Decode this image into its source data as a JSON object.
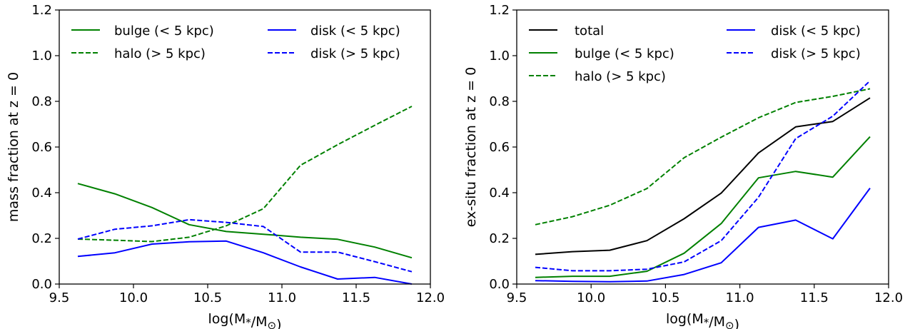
{
  "chart_data": [
    {
      "type": "line",
      "xlabel": "log(M*/M⊙)",
      "ylabel": "mass fraction at z = 0",
      "xlim": [
        9.5,
        12.0
      ],
      "ylim": [
        0.0,
        1.2
      ],
      "xticks": [
        "9.5",
        "10.0",
        "10.5",
        "11.0",
        "11.5",
        "12.0"
      ],
      "yticks": [
        "0.0",
        "0.2",
        "0.4",
        "0.6",
        "0.8",
        "1.0",
        "1.2"
      ],
      "legend_position": "top",
      "x": [
        9.625,
        9.875,
        10.125,
        10.375,
        10.625,
        10.875,
        11.125,
        11.375,
        11.625,
        11.875
      ],
      "series": [
        {
          "name": "bulge (< 5 kpc)",
          "color": "#008000",
          "style": "solid",
          "values": [
            0.44,
            0.395,
            0.335,
            0.26,
            0.23,
            0.218,
            0.205,
            0.196,
            0.162,
            0.115
          ]
        },
        {
          "name": "halo (> 5 kpc)",
          "color": "#008000",
          "style": "dashed",
          "values": [
            0.197,
            0.192,
            0.186,
            0.205,
            0.255,
            0.33,
            0.52,
            0.61,
            0.695,
            0.778
          ]
        },
        {
          "name": "disk (< 5 kpc)",
          "color": "#0000ff",
          "style": "solid",
          "values": [
            0.121,
            0.137,
            0.175,
            0.185,
            0.188,
            0.137,
            0.075,
            0.022,
            0.029,
            0.0
          ]
        },
        {
          "name": "disk (> 5 kpc)",
          "color": "#0000ff",
          "style": "dashed",
          "values": [
            0.197,
            0.24,
            0.255,
            0.282,
            0.27,
            0.252,
            0.14,
            0.14,
            0.098,
            0.054
          ]
        }
      ]
    },
    {
      "type": "line",
      "xlabel": "log(M*/M⊙)",
      "ylabel": "ex-situ fraction at z = 0",
      "xlim": [
        9.5,
        12.0
      ],
      "ylim": [
        0.0,
        1.2
      ],
      "xticks": [
        "9.5",
        "10.0",
        "10.5",
        "11.0",
        "11.5",
        "12.0"
      ],
      "yticks": [
        "0.0",
        "0.2",
        "0.4",
        "0.6",
        "0.8",
        "1.0",
        "1.2"
      ],
      "legend_position": "top",
      "x": [
        9.625,
        9.875,
        10.125,
        10.375,
        10.625,
        10.875,
        11.125,
        11.375,
        11.625,
        11.875
      ],
      "series": [
        {
          "name": "total",
          "color": "#000000",
          "style": "solid",
          "values": [
            0.13,
            0.142,
            0.148,
            0.19,
            0.286,
            0.398,
            0.574,
            0.688,
            0.712,
            0.815
          ]
        },
        {
          "name": "bulge (< 5 kpc)",
          "color": "#008000",
          "style": "solid",
          "values": [
            0.029,
            0.034,
            0.034,
            0.056,
            0.135,
            0.265,
            0.465,
            0.493,
            0.468,
            0.645
          ]
        },
        {
          "name": "halo (> 5 kpc)",
          "color": "#008000",
          "style": "dashed",
          "values": [
            0.26,
            0.295,
            0.345,
            0.418,
            0.553,
            0.643,
            0.728,
            0.795,
            0.822,
            0.855
          ]
        },
        {
          "name": "disk (< 5 kpc)",
          "color": "#0000ff",
          "style": "solid",
          "values": [
            0.015,
            0.012,
            0.01,
            0.013,
            0.042,
            0.093,
            0.248,
            0.28,
            0.198,
            0.42
          ]
        },
        {
          "name": "disk (> 5 kpc)",
          "color": "#0000ff",
          "style": "dashed",
          "values": [
            0.073,
            0.058,
            0.058,
            0.065,
            0.097,
            0.19,
            0.38,
            0.637,
            0.735,
            0.89
          ]
        }
      ]
    }
  ]
}
